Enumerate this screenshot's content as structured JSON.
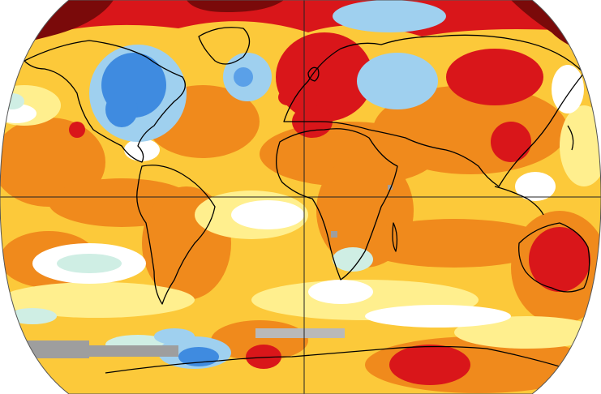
{
  "map": {
    "projection": "robinson",
    "grid_lines": [
      "equator",
      "prime-meridian"
    ],
    "palette": {
      "strong-warm": "#d9161a",
      "very-strong-warm": "#7a0a0a",
      "warm": "#f08a1c",
      "mild-warm": "#fcc93a",
      "slight-warm": "#ffef8e",
      "neutral": "#ffffff",
      "slight-cool": "#cfeee4",
      "mild-cool": "#9fd0ef",
      "cool": "#3f8be0",
      "no-data": "#9e9e9e"
    },
    "regions": [
      {
        "name": "arctic-eurasia",
        "level": "very-strong-warm"
      },
      {
        "name": "eastern-north-america",
        "level": "cool"
      },
      {
        "name": "europe",
        "level": "strong-warm"
      },
      {
        "name": "siberia",
        "level": "strong-warm"
      },
      {
        "name": "australia",
        "level": "strong-warm"
      },
      {
        "name": "antarctica",
        "level": "strong-warm"
      },
      {
        "name": "southern-ocean",
        "level": "no-data"
      }
    ]
  }
}
